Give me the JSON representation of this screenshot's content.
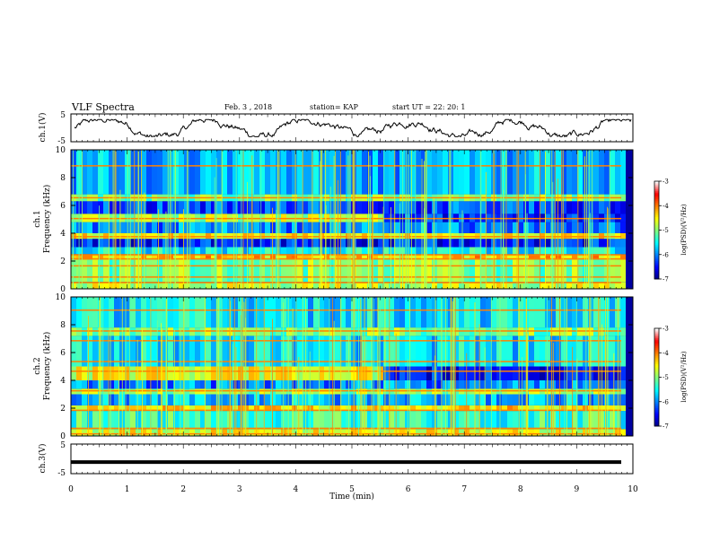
{
  "header": {
    "title": "VLF Spectra",
    "date": "Feb. 3  , 2018",
    "station": "station= KAP",
    "start": "start  UT  =   22: 20: 1"
  },
  "chart_data": [
    {
      "type": "line",
      "panel": "ch1",
      "ylabel": "ch.1(V)",
      "ylim": [
        -5,
        5
      ],
      "yticks": [
        "5",
        "-5"
      ],
      "xlim": [
        0,
        10
      ],
      "note": "continuous low-frequency waveform oscillating between about -3 and +3 V",
      "series_envelope": {
        "min": -3.2,
        "max": 3.0
      }
    },
    {
      "type": "heatmap",
      "panel": "ch1-spectrogram",
      "ylabel_lines": [
        "ch.1",
        "Frequency (kHz)"
      ],
      "ylim": [
        0,
        10
      ],
      "yticks": [
        "0",
        "2",
        "4",
        "6",
        "8",
        "10"
      ],
      "xlim": [
        0,
        10
      ],
      "colorbar": {
        "label": "log(PSD)(V²/Hz)",
        "range": [
          -7,
          -3
        ],
        "ticks": [
          "-3",
          "-4",
          "-5",
          "-6",
          "-7"
        ],
        "colormap": [
          "#00007f",
          "#0000ff",
          "#0080ff",
          "#00ffff",
          "#80ff80",
          "#ffff00",
          "#ff8000",
          "#ff0000",
          "#ffffff"
        ]
      },
      "bands": [
        {
          "f0": 0.0,
          "f1": 0.5,
          "level": -4.7
        },
        {
          "f0": 0.5,
          "f1": 2.1,
          "level": -5.0
        },
        {
          "f0": 2.1,
          "f1": 2.5,
          "level": -4.3
        },
        {
          "f0": 2.5,
          "f1": 3.0,
          "level": -5.5
        },
        {
          "f0": 3.0,
          "f1": 3.6,
          "level": -6.4
        },
        {
          "f0": 3.6,
          "f1": 4.0,
          "level": -4.5
        },
        {
          "f0": 4.0,
          "f1": 4.8,
          "level": -6.0
        },
        {
          "f0": 4.8,
          "f1": 5.4,
          "level": -4.8,
          "after_5_5": -6.3
        },
        {
          "f0": 5.4,
          "f1": 6.3,
          "level": -6.2
        },
        {
          "f0": 6.3,
          "f1": 6.8,
          "level": -5.0
        },
        {
          "f0": 6.8,
          "f1": 10.0,
          "level": -5.8
        }
      ]
    },
    {
      "type": "heatmap",
      "panel": "ch2-spectrogram",
      "ylabel_lines": [
        "ch.2",
        "Frequency (kHz)"
      ],
      "ylim": [
        0,
        10
      ],
      "yticks": [
        "0",
        "2",
        "4",
        "6",
        "8",
        "10"
      ],
      "xlim": [
        0,
        10
      ],
      "colorbar": {
        "label": "log(PSD)(V²/Hz)",
        "range": [
          -7,
          -3
        ],
        "ticks": [
          "-3",
          "-4",
          "-5",
          "-6",
          "-7"
        ],
        "colormap": [
          "#00007f",
          "#0000ff",
          "#0080ff",
          "#00ffff",
          "#80ff80",
          "#ffff00",
          "#ff8000",
          "#ff0000",
          "#ffffff"
        ]
      },
      "bands": [
        {
          "f0": 0.0,
          "f1": 0.5,
          "level": -4.6
        },
        {
          "f0": 0.5,
          "f1": 1.8,
          "level": -5.3
        },
        {
          "f0": 1.8,
          "f1": 2.2,
          "level": -4.4
        },
        {
          "f0": 2.2,
          "f1": 3.0,
          "level": -5.8
        },
        {
          "f0": 3.0,
          "f1": 3.4,
          "level": -4.9
        },
        {
          "f0": 3.4,
          "f1": 4.0,
          "level": -6.0
        },
        {
          "f0": 4.0,
          "f1": 5.0,
          "level": -4.6,
          "after_5_5": -6.4
        },
        {
          "f0": 5.0,
          "f1": 7.2,
          "level": -5.6
        },
        {
          "f0": 7.2,
          "f1": 7.8,
          "level": -5.0
        },
        {
          "f0": 7.8,
          "f1": 10.0,
          "level": -5.6
        }
      ]
    },
    {
      "type": "line",
      "panel": "ch3",
      "ylabel": "ch.3(V)",
      "ylim": [
        -5,
        5
      ],
      "yticks": [
        "5",
        "0",
        "-5"
      ],
      "xlim": [
        0,
        10
      ],
      "xlabel": "Time  (min)",
      "xticks": [
        "0",
        "1",
        "2",
        "3",
        "4",
        "5",
        "6",
        "7",
        "8",
        "9",
        "10"
      ],
      "series_envelope": {
        "min": -1.3,
        "max": -0.9
      }
    }
  ]
}
